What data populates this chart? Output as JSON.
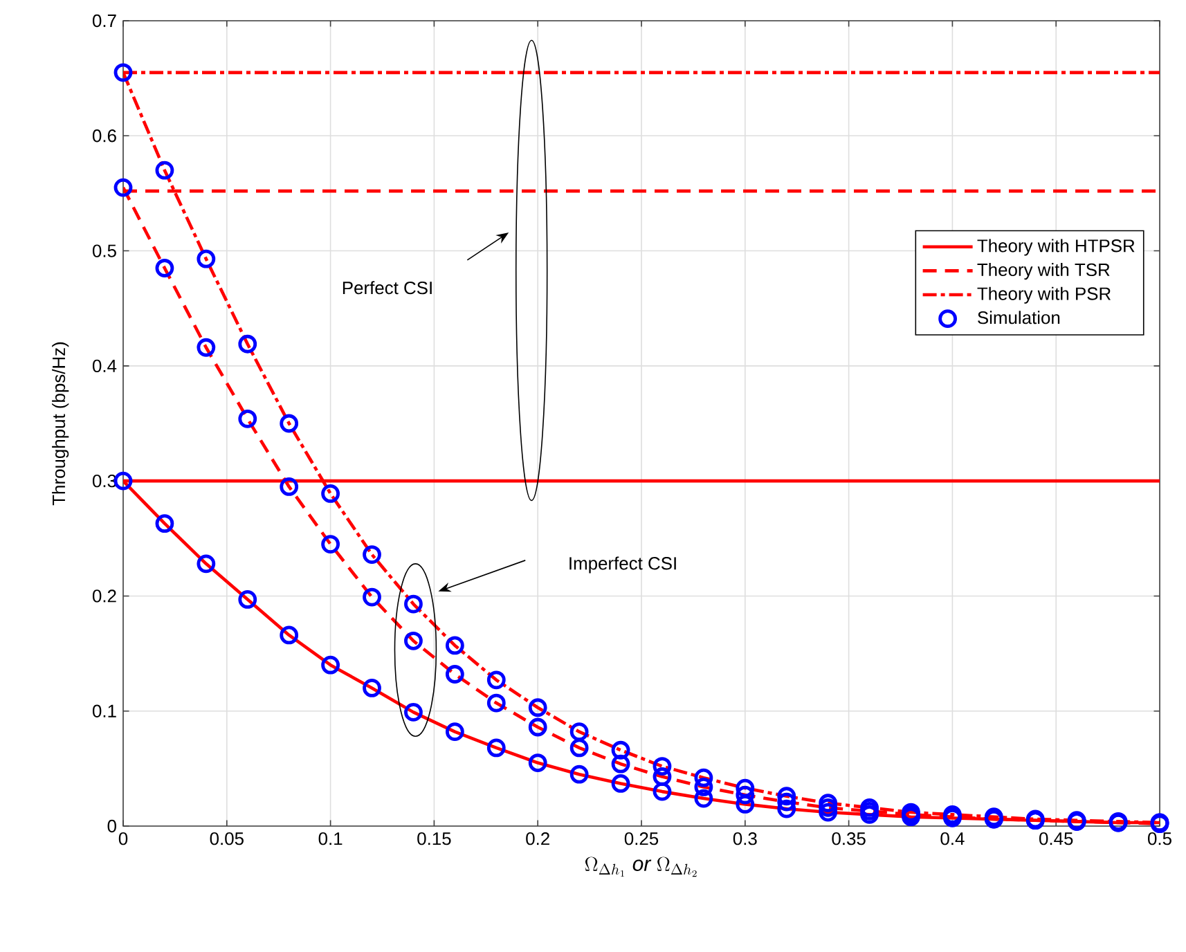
{
  "chart_data": {
    "type": "line",
    "xlabel": "\\Omega_{\\Delta h_1}\\ \\mathit{or}\\ \\Omega_{\\Delta h_2}",
    "ylabel": "Throughput (bps/Hz)",
    "xlim": [
      0,
      0.5
    ],
    "ylim": [
      0,
      0.7
    ],
    "xticks": [
      0,
      0.05,
      0.1,
      0.15,
      0.2,
      0.25,
      0.3,
      0.35,
      0.4,
      0.45,
      0.5
    ],
    "yticks": [
      0,
      0.1,
      0.2,
      0.3,
      0.4,
      0.5,
      0.6,
      0.7
    ],
    "grid": true,
    "legend": "right",
    "annotations": [
      "Perfect CSI",
      "Imperfect CSI"
    ],
    "series": [
      {
        "name": "Theory with HTPSR",
        "color": "#ff0000",
        "line_style": "solid",
        "marker": "none",
        "x": [
          0,
          0.02,
          0.04,
          0.06,
          0.08,
          0.1,
          0.12,
          0.14,
          0.16,
          0.18,
          0.2,
          0.22,
          0.24,
          0.26,
          0.28,
          0.3,
          0.32,
          0.34,
          0.36,
          0.38,
          0.4,
          0.42,
          0.44,
          0.46,
          0.48,
          0.5
        ],
        "values": [
          0.3,
          0.263,
          0.228,
          0.197,
          0.166,
          0.14,
          0.12,
          0.099,
          0.082,
          0.068,
          0.055,
          0.045,
          0.037,
          0.03,
          0.024,
          0.019,
          0.015,
          0.012,
          0.01,
          0.008,
          0.007,
          0.006,
          0.005,
          0.004,
          0.003,
          0.003
        ]
      },
      {
        "name": "Theory with TSR",
        "color": "#ff0000",
        "line_style": "dashed",
        "marker": "none",
        "x": [
          0,
          0.02,
          0.04,
          0.06,
          0.08,
          0.1,
          0.12,
          0.14,
          0.16,
          0.18,
          0.2,
          0.22,
          0.24,
          0.26,
          0.28,
          0.3,
          0.32,
          0.34,
          0.36,
          0.38,
          0.4,
          0.42,
          0.44,
          0.46,
          0.48,
          0.5
        ],
        "values": [
          0.555,
          0.485,
          0.416,
          0.354,
          0.295,
          0.245,
          0.199,
          0.161,
          0.132,
          0.107,
          0.086,
          0.068,
          0.054,
          0.043,
          0.034,
          0.027,
          0.021,
          0.016,
          0.013,
          0.01,
          0.008,
          0.006,
          0.005,
          0.004,
          0.003,
          0.002
        ]
      },
      {
        "name": "Theory with PSR",
        "color": "#ff0000",
        "line_style": "dashdot",
        "marker": "none",
        "x": [
          0,
          0.02,
          0.04,
          0.06,
          0.08,
          0.1,
          0.12,
          0.14,
          0.16,
          0.18,
          0.2,
          0.22,
          0.24,
          0.26,
          0.28,
          0.3,
          0.32,
          0.34,
          0.36,
          0.38,
          0.4,
          0.42,
          0.44,
          0.46,
          0.48,
          0.5
        ],
        "values": [
          0.655,
          0.57,
          0.493,
          0.419,
          0.35,
          0.289,
          0.236,
          0.193,
          0.157,
          0.127,
          0.103,
          0.082,
          0.066,
          0.052,
          0.042,
          0.033,
          0.026,
          0.02,
          0.016,
          0.012,
          0.01,
          0.008,
          0.006,
          0.005,
          0.004,
          0.003
        ]
      },
      {
        "name": "Simulation",
        "type": "scatter",
        "color": "#0000ff",
        "marker": "circle",
        "x": [
          0,
          0.02,
          0.04,
          0.06,
          0.08,
          0.1,
          0.12,
          0.14,
          0.16,
          0.18,
          0.2,
          0.22,
          0.24,
          0.26,
          0.28,
          0.3,
          0.32,
          0.34,
          0.36,
          0.38,
          0.4,
          0.42,
          0.44,
          0.46,
          0.48,
          0.5,
          0,
          0.02,
          0.04,
          0.06,
          0.08,
          0.1,
          0.12,
          0.14,
          0.16,
          0.18,
          0.2,
          0.22,
          0.24,
          0.26,
          0.28,
          0.3,
          0.32,
          0.34,
          0.36,
          0.38,
          0.4,
          0.42,
          0.44,
          0.46,
          0.48,
          0.5,
          0,
          0.02,
          0.04,
          0.06,
          0.08,
          0.1,
          0.12,
          0.14,
          0.16,
          0.18,
          0.2,
          0.22,
          0.24,
          0.26,
          0.28,
          0.3,
          0.32,
          0.34,
          0.36,
          0.38,
          0.4,
          0.42,
          0.44,
          0.46,
          0.48,
          0.5
        ],
        "values": [
          0.3,
          0.263,
          0.228,
          0.197,
          0.166,
          0.14,
          0.12,
          0.099,
          0.082,
          0.068,
          0.055,
          0.045,
          0.037,
          0.03,
          0.024,
          0.019,
          0.015,
          0.012,
          0.01,
          0.008,
          0.007,
          0.006,
          0.005,
          0.004,
          0.003,
          0.003,
          0.555,
          0.485,
          0.416,
          0.354,
          0.295,
          0.245,
          0.199,
          0.161,
          0.132,
          0.107,
          0.086,
          0.068,
          0.054,
          0.043,
          0.034,
          0.027,
          0.021,
          0.016,
          0.013,
          0.01,
          0.008,
          0.006,
          0.005,
          0.004,
          0.003,
          0.002,
          0.655,
          0.57,
          0.493,
          0.419,
          0.35,
          0.289,
          0.236,
          0.193,
          0.157,
          0.127,
          0.103,
          0.082,
          0.066,
          0.052,
          0.042,
          0.033,
          0.026,
          0.02,
          0.016,
          0.012,
          0.01,
          0.008,
          0.006,
          0.005,
          0.004,
          0.003
        ]
      },
      {
        "color": "#ff0000",
        "line_style": "solid",
        "marker": "none",
        "x": [
          0,
          0.5
        ],
        "values": [
          0.3,
          0.3
        ]
      },
      {
        "color": "#ff0000",
        "line_style": "dashed",
        "marker": "none",
        "x": [
          0,
          0.5
        ],
        "values": [
          0.552,
          0.552
        ]
      },
      {
        "color": "#ff0000",
        "line_style": "dashdot",
        "marker": "none",
        "x": [
          0,
          0.5
        ],
        "values": [
          0.655,
          0.655
        ]
      }
    ]
  }
}
